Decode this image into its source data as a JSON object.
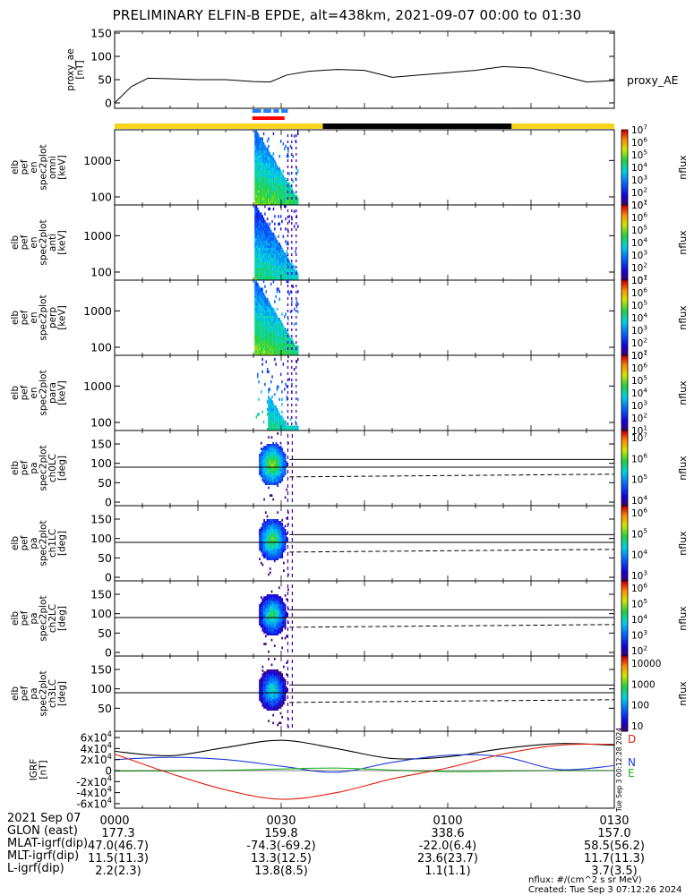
{
  "title": "PRELIMINARY ELFIN-B EPDE, alt=438km, 2021-09-07 00:00 to 01:30",
  "time_range_minutes": [
    0,
    90
  ],
  "colors": {
    "ae_line": "#000000",
    "bar_yellow": "#f7d31c",
    "bar_black": "#000000",
    "bar_blue": "#1f7fff",
    "bar_red": "#ff0000",
    "grf_D": "#000000",
    "grf_red": "#e02010",
    "grf_N": "#1e3cd8",
    "grf_E": "#22b822"
  },
  "panels": {
    "ae": {
      "ylabel": "proxy_ae\n[nT]",
      "ticks": [
        "0",
        "50",
        "100",
        "150"
      ],
      "series_label": "proxy_AE"
    },
    "spec": [
      {
        "ylabel": "elb\npef\nen\nspec2plot\nomni\n[keV]",
        "ticks": [
          "100",
          "1000"
        ],
        "cbar_label": "nflux",
        "cbar_ticks": [
          "10^1",
          "10^2",
          "10^3",
          "10^4",
          "10^5",
          "10^6",
          "10^7"
        ]
      },
      {
        "ylabel": "elb\npef\nen\nspec2plot\nanti\n[keV]",
        "ticks": [
          "100",
          "1000"
        ],
        "cbar_label": "nflux",
        "cbar_ticks": [
          "10^1",
          "10^2",
          "10^3",
          "10^4",
          "10^5",
          "10^6",
          "10^7"
        ]
      },
      {
        "ylabel": "elb\npef\nen\nspec2plot\nperp\n[keV]",
        "ticks": [
          "100",
          "1000"
        ],
        "cbar_label": "nflux",
        "cbar_ticks": [
          "10^1",
          "10^2",
          "10^3",
          "10^4",
          "10^5",
          "10^6",
          "10^7"
        ]
      },
      {
        "ylabel": "elb\npef\nen\nspec2plot\npara\n[keV]",
        "ticks": [
          "100",
          "1000"
        ],
        "cbar_label": "nflux",
        "cbar_ticks": [
          "10^1",
          "10^2",
          "10^3",
          "10^4",
          "10^5",
          "10^6",
          "10^7"
        ]
      }
    ],
    "pa": [
      {
        "ylabel": "elb\npef\npa\nspec2plot\nch0LC\n[deg]",
        "ticks": [
          "0",
          "50",
          "100",
          "150"
        ],
        "cbar_label": "nflux",
        "cbar_ticks": [
          "10^4",
          "10^5",
          "10^6",
          "10^7"
        ]
      },
      {
        "ylabel": "elb\npef\npa\nspec2plot\nch1LC\n[deg]",
        "ticks": [
          "0",
          "50",
          "100",
          "150"
        ],
        "cbar_label": "nflux",
        "cbar_ticks": [
          "10^3",
          "10^4",
          "10^5",
          "10^6"
        ]
      },
      {
        "ylabel": "elb\npef\npa\nspec2plot\nch2LC\n[deg]",
        "ticks": [
          "0",
          "50",
          "100",
          "150"
        ],
        "cbar_label": "nflux",
        "cbar_ticks": [
          "10^2",
          "10^3",
          "10^4",
          "10^5",
          "10^6"
        ]
      },
      {
        "ylabel": "elb\npef\npa\nspec2plot\nch3LC\n[deg]",
        "ticks": [
          "50",
          "100",
          "150"
        ],
        "cbar_label": "nflux",
        "cbar_ticks": [
          "10",
          "100",
          "1000",
          "10000"
        ]
      }
    ],
    "grf": {
      "ylabel": "IGRF\n[nT]",
      "ticks": [
        "-6x10^4",
        "-4x10^4",
        "-2x10^4",
        "0",
        "2x10^4",
        "4x10^4",
        "6x10^4"
      ],
      "series_labels": [
        "D",
        "N",
        "E"
      ],
      "side_text": "Tue Sep  3 00:12:28 2024"
    }
  },
  "chart_data": [
    {
      "type": "line",
      "name": "proxy_AE",
      "xlabel": "",
      "ylabel": "proxy_ae [nT]",
      "ylim": [
        0,
        150
      ],
      "x": [
        0,
        3,
        6,
        10,
        15,
        20,
        25,
        28,
        31,
        35,
        40,
        45,
        50,
        55,
        60,
        65,
        70,
        75,
        80,
        85,
        90
      ],
      "y": [
        0,
        35,
        53,
        52,
        50,
        50,
        46,
        45,
        60,
        68,
        72,
        70,
        55,
        60,
        65,
        70,
        78,
        75,
        60,
        45,
        48
      ]
    },
    {
      "type": "heatmap",
      "name": "omni energy spectrogram",
      "ylabel": "[keV]",
      "yscale": "log",
      "ylim": [
        60,
        7000
      ],
      "active_x_range": [
        25,
        33
      ],
      "cbar_range": [
        "10^1",
        "10^7"
      ]
    },
    {
      "type": "heatmap",
      "name": "anti energy spectrogram",
      "ylabel": "[keV]",
      "yscale": "log",
      "ylim": [
        60,
        7000
      ],
      "active_x_range": [
        25,
        33
      ]
    },
    {
      "type": "heatmap",
      "name": "perp energy spectrogram",
      "ylabel": "[keV]",
      "yscale": "log",
      "ylim": [
        60,
        7000
      ],
      "active_x_range": [
        25,
        33
      ]
    },
    {
      "type": "heatmap",
      "name": "para energy spectrogram",
      "ylabel": "[keV]",
      "yscale": "log",
      "ylim": [
        60,
        7000
      ],
      "active_x_range": [
        27,
        33
      ]
    },
    {
      "type": "heatmap",
      "name": "pitch angle spectrograms ch0LC-ch3LC",
      "ylabel": "[deg]",
      "ylim": [
        0,
        180
      ],
      "reference_lines_deg": [
        90,
        110
      ],
      "loss_cone_deg_start": 65,
      "loss_cone_deg_end": 72,
      "active_x_range": [
        26,
        31
      ]
    },
    {
      "type": "line",
      "name": "IGRF field components",
      "ylabel": "IGRF [nT]",
      "ylim": [
        -65000,
        65000
      ],
      "x": [
        0,
        10,
        20,
        30,
        40,
        50,
        60,
        70,
        80,
        90
      ],
      "series": [
        {
          "name": "D",
          "values": [
            35000,
            27000,
            42000,
            55000,
            40000,
            22000,
            25000,
            40000,
            49000,
            46000
          ]
        },
        {
          "name": "N",
          "values": [
            20000,
            24000,
            20000,
            8000,
            -3000,
            15000,
            28000,
            25000,
            2000,
            9000
          ]
        },
        {
          "name": "E",
          "values": [
            -1000,
            -500,
            500,
            3000,
            4500,
            1000,
            -2000,
            -1000,
            0,
            0
          ]
        },
        {
          "name": "",
          "values": [
            30000,
            -5000,
            -35000,
            -52000,
            -40000,
            -15000,
            5000,
            30000,
            46000,
            48000
          ]
        }
      ]
    }
  ],
  "xaxis": {
    "date": "2021 Sep 07",
    "ticks": [
      "0000",
      "0030",
      "0100",
      "0130"
    ],
    "rows": [
      {
        "label": "GLON (east)",
        "values": [
          "177.3",
          "159.8",
          "338.6",
          "157.0"
        ]
      },
      {
        "label": "MLAT-igrf(dip)",
        "values": [
          "47.0(46.7)",
          "-74.3(-69.2)",
          "-22.0(6.4)",
          "58.5(56.2)"
        ]
      },
      {
        "label": "MLT-igrf(dip)",
        "values": [
          "11.5(11.3)",
          "13.3(12.5)",
          "23.6(23.7)",
          "11.7(11.3)"
        ]
      },
      {
        "label": "L-igrf(dip)",
        "values": [
          "2.2(2.3)",
          "13.8(8.5)",
          "1.1(1.1)",
          "3.7(3.5)"
        ]
      }
    ]
  },
  "footer": {
    "units": "nflux: #/(cm^2 s sr MeV)",
    "created": "Created: Tue Sep  3 07:12:26 2024"
  }
}
